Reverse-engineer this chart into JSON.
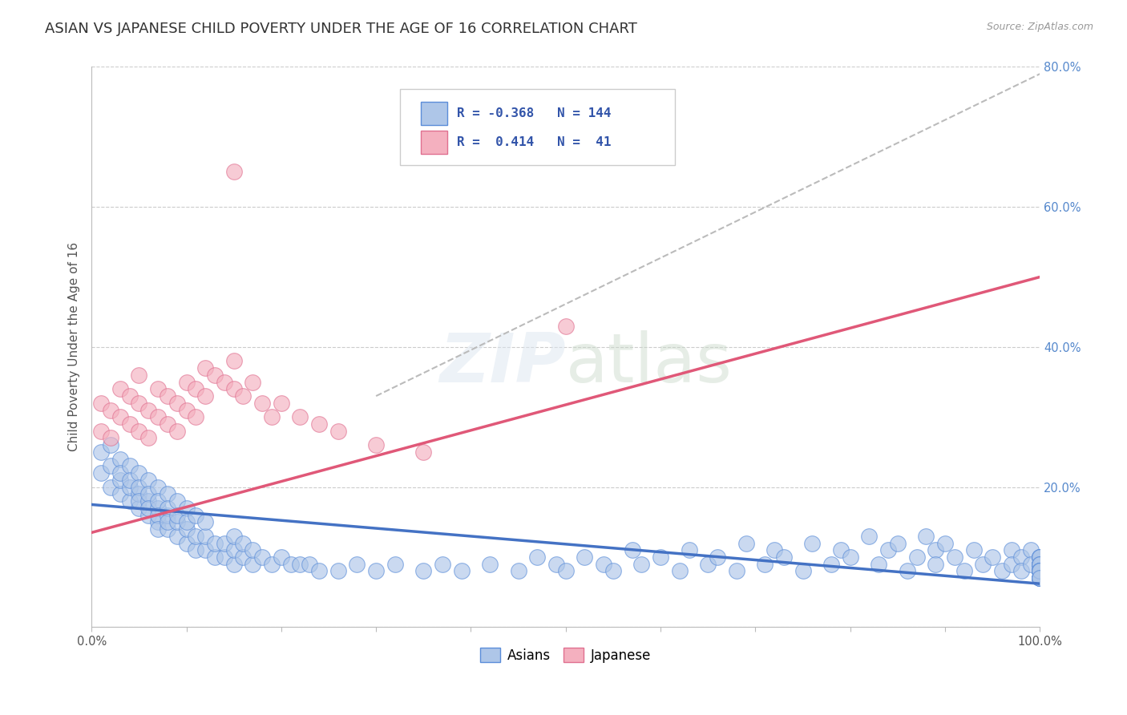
{
  "title": "ASIAN VS JAPANESE CHILD POVERTY UNDER THE AGE OF 16 CORRELATION CHART",
  "source": "Source: ZipAtlas.com",
  "ylabel": "Child Poverty Under the Age of 16",
  "xlim": [
    0.0,
    1.0
  ],
  "ylim": [
    0.0,
    0.8
  ],
  "xticks": [
    0.0,
    0.1,
    0.2,
    0.3,
    0.4,
    0.5,
    0.6,
    0.7,
    0.8,
    0.9,
    1.0
  ],
  "yticks": [
    0.0,
    0.2,
    0.4,
    0.6,
    0.8
  ],
  "legend_R_asian": "-0.368",
  "legend_N_asian": "144",
  "legend_R_japanese": "0.414",
  "legend_N_japanese": "41",
  "asian_color": "#aec6e8",
  "japanese_color": "#f4b0bf",
  "asian_edge_color": "#5b8dd9",
  "japanese_edge_color": "#e07090",
  "asian_line_color": "#4472c4",
  "japanese_line_color": "#e05878",
  "gray_line_color": "#bbbbbb",
  "background_color": "#ffffff",
  "title_fontsize": 13,
  "axis_label_fontsize": 11,
  "tick_fontsize": 10.5,
  "asian_scatter_x": [
    0.01,
    0.01,
    0.02,
    0.02,
    0.02,
    0.03,
    0.03,
    0.03,
    0.03,
    0.04,
    0.04,
    0.04,
    0.04,
    0.05,
    0.05,
    0.05,
    0.05,
    0.05,
    0.06,
    0.06,
    0.06,
    0.06,
    0.06,
    0.07,
    0.07,
    0.07,
    0.07,
    0.07,
    0.07,
    0.08,
    0.08,
    0.08,
    0.08,
    0.08,
    0.09,
    0.09,
    0.09,
    0.09,
    0.1,
    0.1,
    0.1,
    0.1,
    0.11,
    0.11,
    0.11,
    0.12,
    0.12,
    0.12,
    0.13,
    0.13,
    0.14,
    0.14,
    0.15,
    0.15,
    0.15,
    0.16,
    0.16,
    0.17,
    0.17,
    0.18,
    0.19,
    0.2,
    0.21,
    0.22,
    0.23,
    0.24,
    0.26,
    0.28,
    0.3,
    0.32,
    0.35,
    0.37,
    0.39,
    0.42,
    0.45,
    0.47,
    0.49,
    0.5,
    0.52,
    0.54,
    0.55,
    0.57,
    0.58,
    0.6,
    0.62,
    0.63,
    0.65,
    0.66,
    0.68,
    0.69,
    0.71,
    0.72,
    0.73,
    0.75,
    0.76,
    0.78,
    0.79,
    0.8,
    0.82,
    0.83,
    0.84,
    0.85,
    0.86,
    0.87,
    0.88,
    0.89,
    0.89,
    0.9,
    0.91,
    0.92,
    0.93,
    0.94,
    0.95,
    0.96,
    0.97,
    0.97,
    0.98,
    0.98,
    0.99,
    0.99,
    1.0,
    1.0,
    1.0,
    1.0,
    1.0,
    1.0,
    1.0,
    1.0,
    1.0,
    1.0,
    1.0,
    1.0,
    1.0,
    1.0,
    1.0,
    1.0,
    1.0,
    1.0,
    1.0,
    1.0,
    1.0,
    1.0,
    1.0,
    1.0
  ],
  "asian_scatter_y": [
    0.22,
    0.25,
    0.2,
    0.23,
    0.26,
    0.19,
    0.21,
    0.24,
    0.22,
    0.18,
    0.2,
    0.23,
    0.21,
    0.17,
    0.19,
    0.22,
    0.2,
    0.18,
    0.16,
    0.18,
    0.21,
    0.19,
    0.17,
    0.15,
    0.17,
    0.2,
    0.18,
    0.16,
    0.14,
    0.14,
    0.16,
    0.19,
    0.17,
    0.15,
    0.13,
    0.15,
    0.18,
    0.16,
    0.12,
    0.14,
    0.17,
    0.15,
    0.11,
    0.13,
    0.16,
    0.11,
    0.13,
    0.15,
    0.1,
    0.12,
    0.1,
    0.12,
    0.09,
    0.11,
    0.13,
    0.1,
    0.12,
    0.09,
    0.11,
    0.1,
    0.09,
    0.1,
    0.09,
    0.09,
    0.09,
    0.08,
    0.08,
    0.09,
    0.08,
    0.09,
    0.08,
    0.09,
    0.08,
    0.09,
    0.08,
    0.1,
    0.09,
    0.08,
    0.1,
    0.09,
    0.08,
    0.11,
    0.09,
    0.1,
    0.08,
    0.11,
    0.09,
    0.1,
    0.08,
    0.12,
    0.09,
    0.11,
    0.1,
    0.08,
    0.12,
    0.09,
    0.11,
    0.1,
    0.13,
    0.09,
    0.11,
    0.12,
    0.08,
    0.1,
    0.13,
    0.11,
    0.09,
    0.12,
    0.1,
    0.08,
    0.11,
    0.09,
    0.1,
    0.08,
    0.11,
    0.09,
    0.1,
    0.08,
    0.11,
    0.09,
    0.1,
    0.08,
    0.09,
    0.1,
    0.08,
    0.09,
    0.1,
    0.08,
    0.09,
    0.1,
    0.08,
    0.09,
    0.07,
    0.08,
    0.09,
    0.07,
    0.08,
    0.07,
    0.08,
    0.07,
    0.08,
    0.07,
    0.08,
    0.07
  ],
  "japanese_scatter_x": [
    0.01,
    0.01,
    0.02,
    0.02,
    0.03,
    0.03,
    0.04,
    0.04,
    0.05,
    0.05,
    0.05,
    0.06,
    0.06,
    0.07,
    0.07,
    0.08,
    0.08,
    0.09,
    0.09,
    0.1,
    0.1,
    0.11,
    0.11,
    0.12,
    0.12,
    0.13,
    0.14,
    0.15,
    0.15,
    0.16,
    0.17,
    0.18,
    0.19,
    0.2,
    0.22,
    0.24,
    0.26,
    0.3,
    0.35,
    0.5,
    0.15
  ],
  "japanese_scatter_y": [
    0.28,
    0.32,
    0.27,
    0.31,
    0.3,
    0.34,
    0.29,
    0.33,
    0.28,
    0.32,
    0.36,
    0.27,
    0.31,
    0.3,
    0.34,
    0.29,
    0.33,
    0.28,
    0.32,
    0.31,
    0.35,
    0.3,
    0.34,
    0.33,
    0.37,
    0.36,
    0.35,
    0.34,
    0.38,
    0.33,
    0.35,
    0.32,
    0.3,
    0.32,
    0.3,
    0.29,
    0.28,
    0.26,
    0.25,
    0.43,
    0.65
  ],
  "asian_trend_x": [
    0.0,
    1.0
  ],
  "asian_trend_y": [
    0.175,
    0.062
  ],
  "japanese_trend_x": [
    0.0,
    1.0
  ],
  "japanese_trend_y": [
    0.135,
    0.5
  ],
  "gray_trend_x": [
    0.3,
    1.0
  ],
  "gray_trend_y": [
    0.33,
    0.79
  ]
}
